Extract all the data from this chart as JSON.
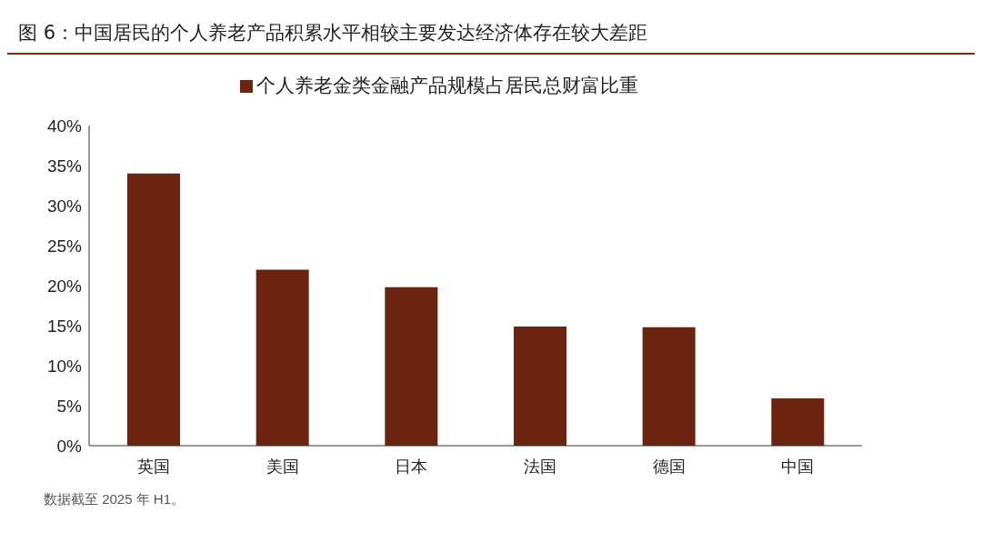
{
  "chart_data": {
    "type": "bar",
    "title": "图 6：中国居民的个人养老产品积累水平相较主要发达经济体存在较大差距",
    "categories": [
      "英国",
      "美国",
      "日本",
      "法国",
      "德国",
      "中国"
    ],
    "series": [
      {
        "name": "个人养老金类金融产品规模占居民总财富比重",
        "color": "#6b2410",
        "values": [
          34,
          22,
          19.8,
          14.9,
          14.8,
          5.9
        ]
      }
    ],
    "ylim": [
      0,
      40
    ],
    "yticks": [
      {
        "value": 0,
        "label": "0%"
      },
      {
        "value": 5,
        "label": "5%"
      },
      {
        "value": 10,
        "label": "10%"
      },
      {
        "value": 15,
        "label": "15%"
      },
      {
        "value": 20,
        "label": "20%"
      },
      {
        "value": 25,
        "label": "25%"
      },
      {
        "value": 30,
        "label": "30%"
      },
      {
        "value": 35,
        "label": "35%"
      },
      {
        "value": 40,
        "label": "40%"
      }
    ],
    "grid": false,
    "legend": "top",
    "annotations": [
      "数据截至 2025 年 H1。"
    ]
  }
}
